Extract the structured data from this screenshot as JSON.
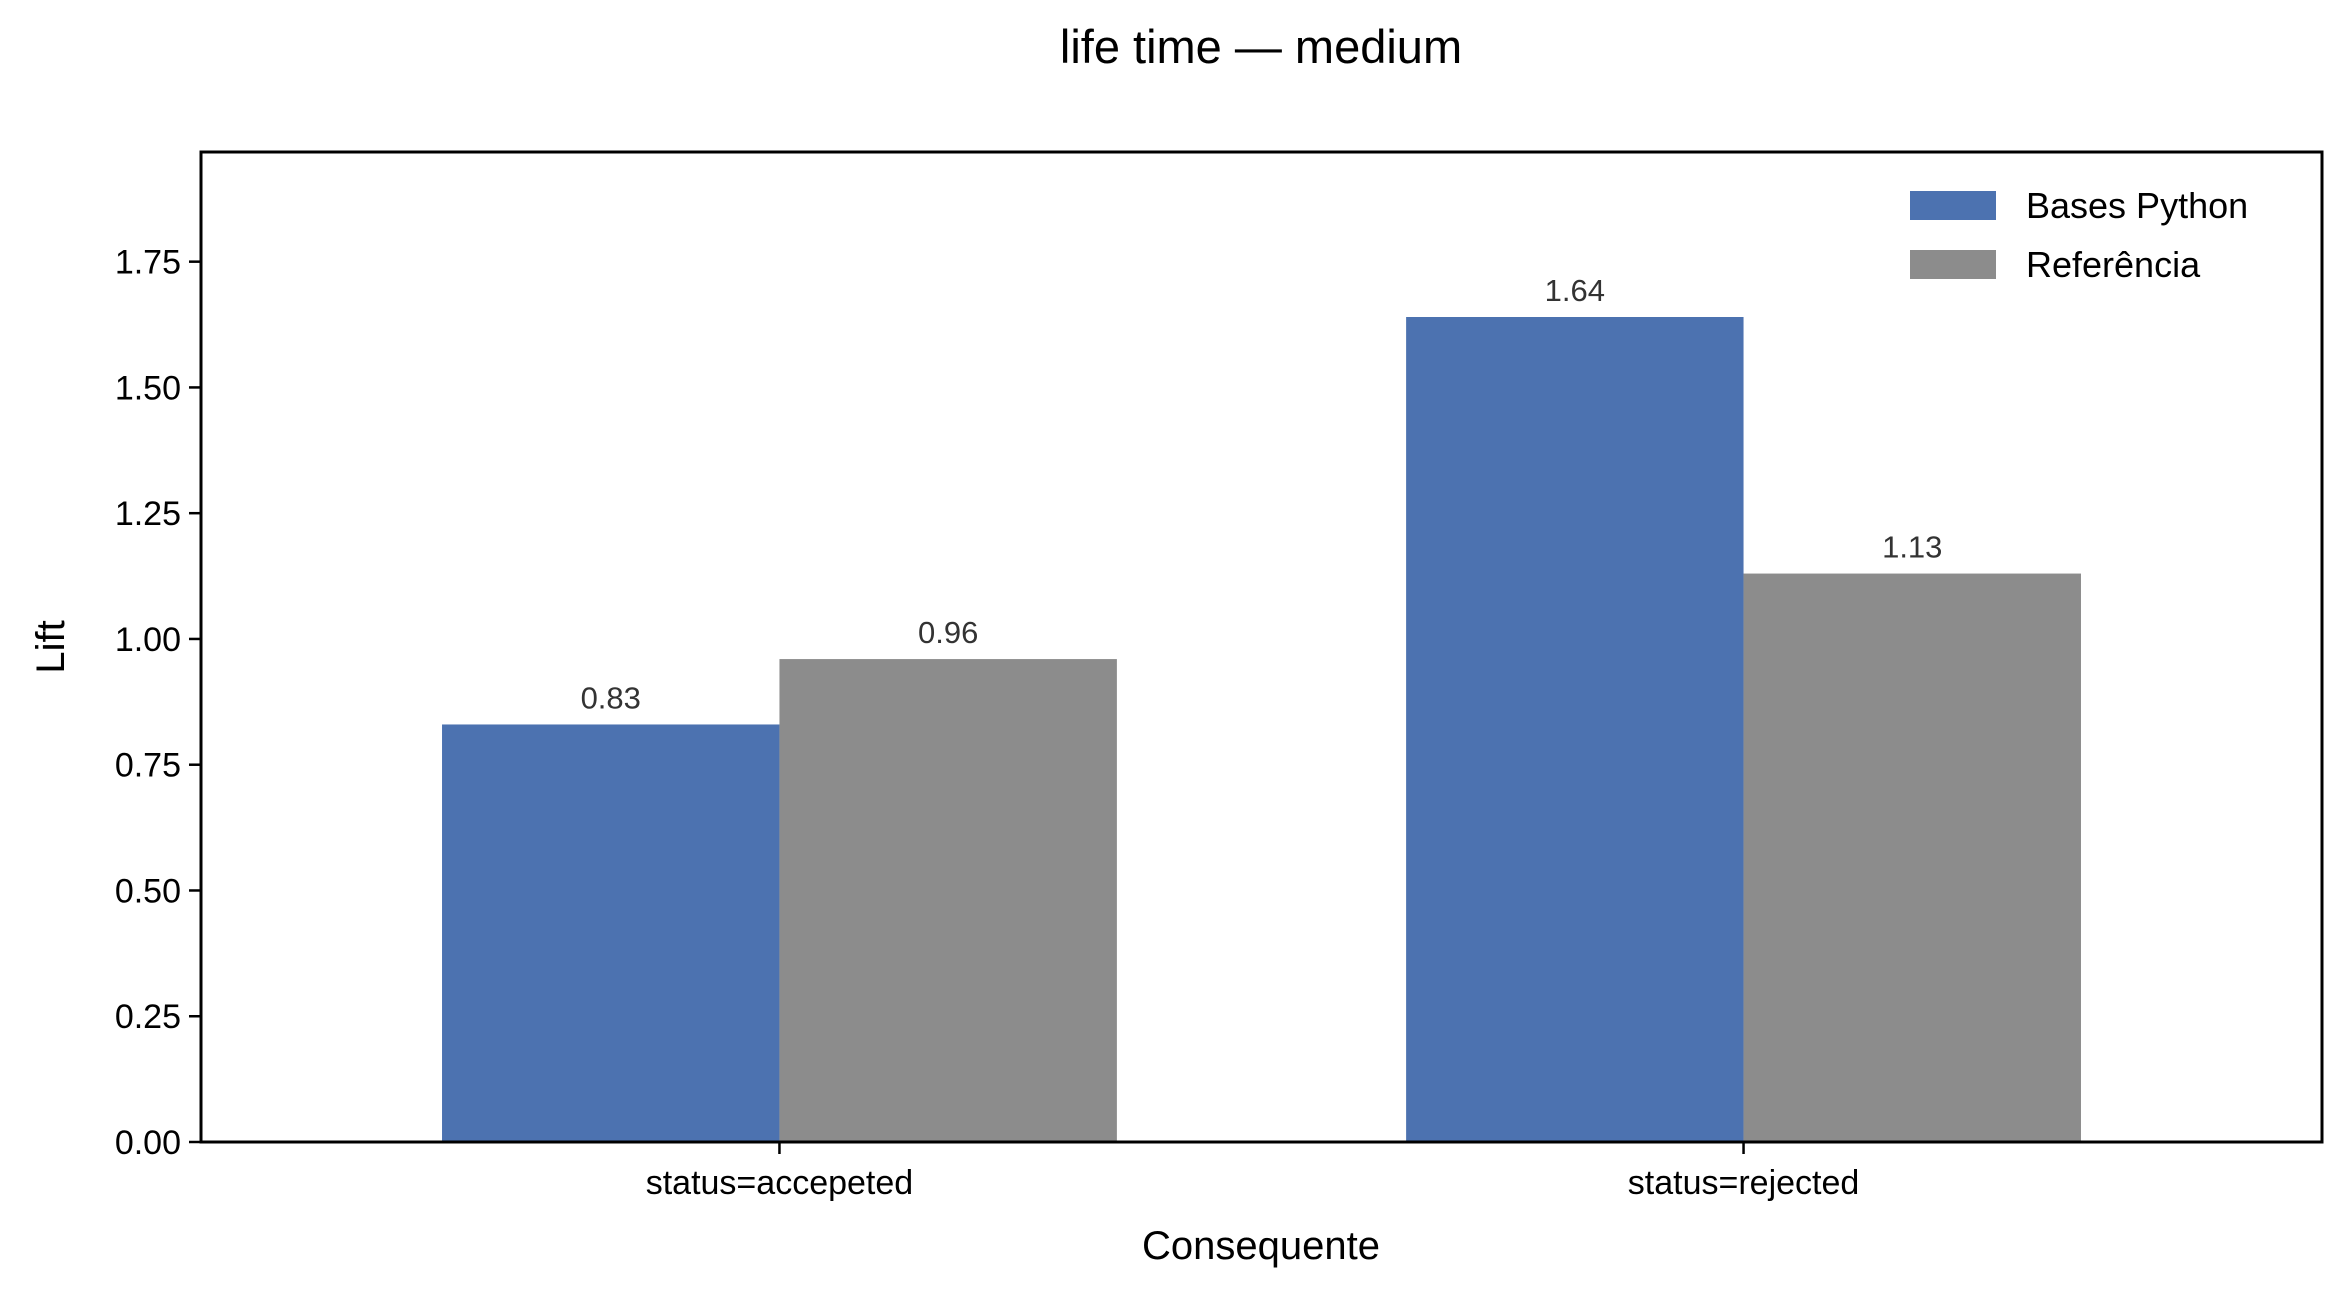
{
  "chart_data": {
    "type": "bar",
    "title": "life time — medium",
    "xlabel": "Consequente",
    "ylabel": "Lift",
    "categories": [
      "status=accepeted",
      "status=rejected"
    ],
    "series": [
      {
        "name": "Bases Python",
        "values": [
          0.83,
          1.64
        ],
        "labels": [
          "0.83",
          "1.64"
        ],
        "color": "#4c72b0"
      },
      {
        "name": "Referência",
        "values": [
          0.96,
          1.13
        ],
        "labels": [
          "0.96",
          "1.13"
        ],
        "color": "#8c8c8c"
      }
    ],
    "ylim": [
      0,
      1.968
    ],
    "yticks": [
      "0.00",
      "0.25",
      "0.50",
      "0.75",
      "1.00",
      "1.25",
      "1.50",
      "1.75"
    ],
    "grid": false,
    "legend_position": "top-right"
  }
}
